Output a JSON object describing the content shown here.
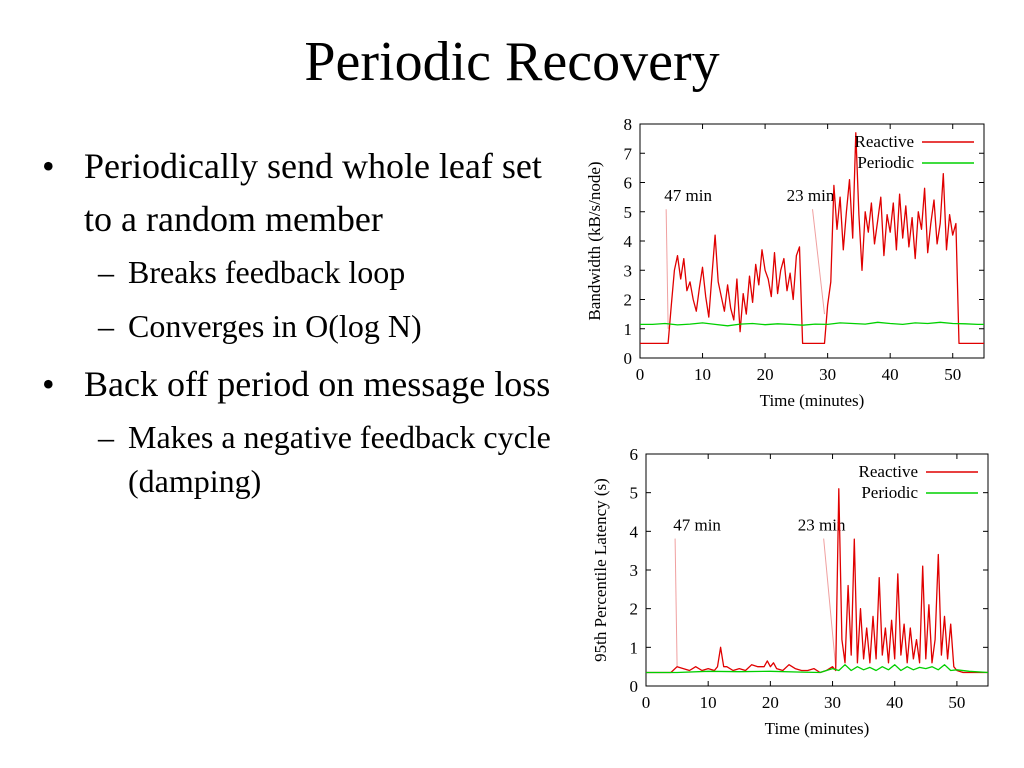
{
  "slide": {
    "title": "Periodic Recovery",
    "bullets": [
      {
        "text": "Periodically send whole leaf set to a random member",
        "sub": [
          "Breaks feedback loop",
          "Converges in O(log N)"
        ]
      },
      {
        "text": "Back off period on message loss",
        "sub": [
          "Makes a negative feedback cycle (damping)"
        ]
      }
    ],
    "bullet_symbol": "•",
    "sub_bullet_symbol": "–"
  },
  "chart_data": [
    {
      "type": "line",
      "xlabel": "Time (minutes)",
      "ylabel": "Bandwidth (kB/s/node)",
      "xlim": [
        0,
        55
      ],
      "ylim": [
        0,
        8
      ],
      "xticks": [
        "0",
        "10",
        "20",
        "30",
        "40",
        "50"
      ],
      "yticks": [
        "0",
        "1",
        "2",
        "3",
        "4",
        "5",
        "6",
        "7",
        "8"
      ],
      "legend": "top-right",
      "annotations": [
        {
          "text": "47 min",
          "x": 4.5,
          "y": 1.0
        },
        {
          "text": "23 min",
          "x": 29.5,
          "y": 1.5
        }
      ],
      "series": [
        {
          "name": "Reactive",
          "color": "#e00000",
          "x": [
            0,
            1,
            2,
            3,
            4,
            4.5,
            5,
            5.5,
            6,
            6.5,
            7,
            7.5,
            8,
            8.5,
            9,
            9.5,
            10,
            10.5,
            11,
            11.5,
            12,
            12.5,
            13,
            13.5,
            14,
            14.5,
            15,
            15.5,
            16,
            16.5,
            17,
            17.5,
            18,
            18.5,
            19,
            19.5,
            20,
            20.5,
            21,
            21.5,
            22,
            22.5,
            23,
            23.5,
            24,
            24.5,
            25,
            25.5,
            26,
            27,
            28,
            29,
            29.5,
            30,
            30.5,
            31,
            31.5,
            32,
            32.5,
            33,
            33.5,
            34,
            34.5,
            35,
            35.5,
            36,
            36.5,
            37,
            37.5,
            38,
            38.5,
            39,
            39.5,
            40,
            40.5,
            41,
            41.5,
            42,
            42.5,
            43,
            43.5,
            44,
            44.5,
            45,
            45.5,
            46,
            46.5,
            47,
            47.5,
            48,
            48.5,
            49,
            49.5,
            50,
            50.5,
            51,
            52,
            53,
            54,
            55
          ],
          "y": [
            0.5,
            0.5,
            0.5,
            0.5,
            0.5,
            0.5,
            1.8,
            3.0,
            3.5,
            2.7,
            3.4,
            2.3,
            2.6,
            2.0,
            1.6,
            2.4,
            3.1,
            2.1,
            1.4,
            2.8,
            4.2,
            2.6,
            2.1,
            1.6,
            2.5,
            1.7,
            1.3,
            2.7,
            0.9,
            2.2,
            1.5,
            2.8,
            1.9,
            3.2,
            2.5,
            3.7,
            3.0,
            2.7,
            2.1,
            3.6,
            2.2,
            3.0,
            3.4,
            2.3,
            2.9,
            2.0,
            3.5,
            3.8,
            0.5,
            0.5,
            0.5,
            0.5,
            0.5,
            1.8,
            2.6,
            5.9,
            4.4,
            5.5,
            3.7,
            5.0,
            6.1,
            4.1,
            7.7,
            4.9,
            3.0,
            5.0,
            4.3,
            5.3,
            3.9,
            4.7,
            5.5,
            3.5,
            4.9,
            4.3,
            5.3,
            3.7,
            5.6,
            4.1,
            5.2,
            3.8,
            4.8,
            3.4,
            5.0,
            4.4,
            5.8,
            3.6,
            4.6,
            5.4,
            3.9,
            4.6,
            6.3,
            3.7,
            4.9,
            4.2,
            4.6,
            0.5,
            0.5,
            0.5,
            0.5,
            0.5
          ]
        },
        {
          "name": "Periodic",
          "color": "#00d000",
          "x": [
            0,
            2,
            4,
            6,
            8,
            10,
            12,
            14,
            16,
            18,
            20,
            22,
            24,
            26,
            28,
            30,
            32,
            34,
            36,
            38,
            40,
            42,
            44,
            46,
            48,
            50,
            52,
            54,
            55
          ],
          "y": [
            1.15,
            1.15,
            1.18,
            1.13,
            1.16,
            1.2,
            1.15,
            1.1,
            1.16,
            1.18,
            1.14,
            1.17,
            1.15,
            1.12,
            1.16,
            1.15,
            1.2,
            1.18,
            1.16,
            1.22,
            1.18,
            1.15,
            1.2,
            1.18,
            1.22,
            1.18,
            1.17,
            1.15,
            1.15
          ]
        }
      ]
    },
    {
      "type": "line",
      "xlabel": "Time (minutes)",
      "ylabel": "95th Percentile Latency (s)",
      "xlim": [
        0,
        55
      ],
      "ylim": [
        0,
        6
      ],
      "xticks": [
        "0",
        "10",
        "20",
        "30",
        "40",
        "50"
      ],
      "yticks": [
        "0",
        "1",
        "2",
        "3",
        "4",
        "5",
        "6"
      ],
      "legend": "top-right",
      "annotations": [
        {
          "text": "47 min",
          "x": 5,
          "y": 0.5
        },
        {
          "text": "23 min",
          "x": 30.5,
          "y": 0.5
        }
      ],
      "series": [
        {
          "name": "Reactive",
          "color": "#e00000",
          "x": [
            0,
            2,
            4,
            5,
            6,
            7,
            8,
            9,
            10,
            11,
            11.5,
            12,
            12.5,
            13,
            14,
            15,
            16,
            17,
            18,
            19,
            19.5,
            20,
            20.5,
            21,
            22,
            23,
            24,
            25,
            26,
            27,
            28,
            29,
            30,
            30.5,
            31,
            31.5,
            32,
            32.5,
            33,
            33.5,
            34,
            34.5,
            35,
            35.5,
            36,
            36.5,
            37,
            37.5,
            38,
            38.5,
            39,
            39.5,
            40,
            40.5,
            41,
            41.5,
            42,
            42.5,
            43,
            43.5,
            44,
            44.5,
            45,
            45.5,
            46,
            46.5,
            47,
            47.5,
            48,
            48.5,
            49,
            49.5,
            50,
            51,
            52,
            53,
            54,
            55
          ],
          "y": [
            0.35,
            0.35,
            0.35,
            0.5,
            0.45,
            0.4,
            0.5,
            0.4,
            0.45,
            0.4,
            0.5,
            1.0,
            0.5,
            0.5,
            0.4,
            0.45,
            0.4,
            0.55,
            0.5,
            0.5,
            0.65,
            0.5,
            0.6,
            0.45,
            0.4,
            0.55,
            0.45,
            0.4,
            0.4,
            0.45,
            0.35,
            0.4,
            0.5,
            0.4,
            5.1,
            1.2,
            0.6,
            2.6,
            0.8,
            3.8,
            0.6,
            2.0,
            0.7,
            1.5,
            0.6,
            1.8,
            0.7,
            2.8,
            0.8,
            1.5,
            0.6,
            1.7,
            0.7,
            2.9,
            0.8,
            1.6,
            0.6,
            1.5,
            0.7,
            1.2,
            0.6,
            3.1,
            0.7,
            2.1,
            0.6,
            1.2,
            3.4,
            0.8,
            1.8,
            0.7,
            1.6,
            0.5,
            0.4,
            0.35,
            0.35,
            0.35,
            0.35,
            0.35
          ]
        },
        {
          "name": "Periodic",
          "color": "#00d000",
          "x": [
            0,
            5,
            10,
            15,
            20,
            25,
            28,
            30,
            31,
            32,
            33,
            34,
            35,
            36,
            37,
            38,
            39,
            40,
            41,
            42,
            43,
            44,
            45,
            46,
            47,
            48,
            49,
            50,
            52,
            55
          ],
          "y": [
            0.35,
            0.35,
            0.38,
            0.37,
            0.38,
            0.36,
            0.35,
            0.45,
            0.4,
            0.55,
            0.4,
            0.5,
            0.42,
            0.48,
            0.4,
            0.5,
            0.42,
            0.55,
            0.4,
            0.5,
            0.42,
            0.48,
            0.45,
            0.5,
            0.42,
            0.55,
            0.4,
            0.42,
            0.38,
            0.35
          ]
        }
      ]
    }
  ]
}
